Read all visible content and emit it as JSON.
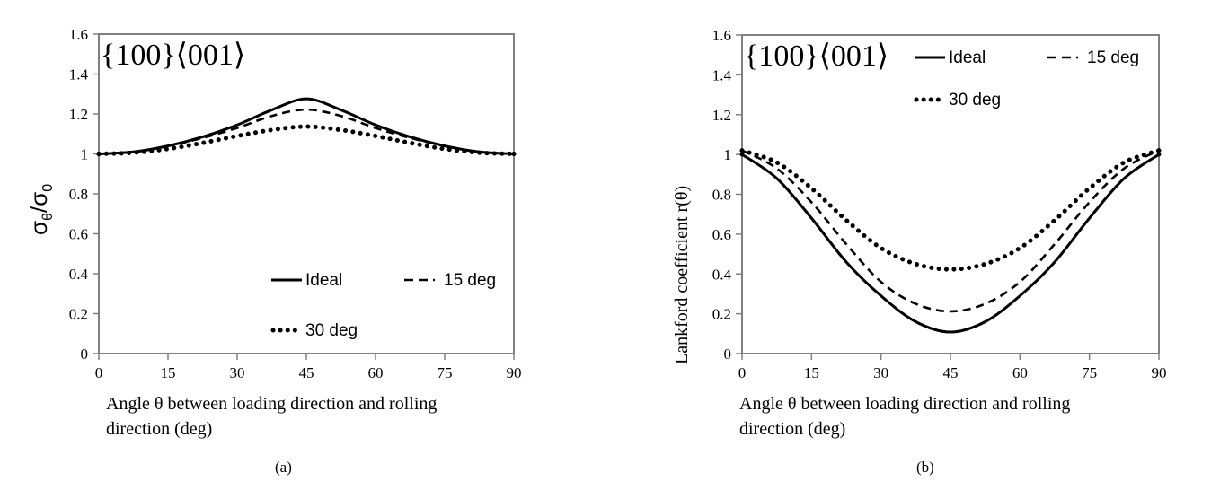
{
  "chart_data": [
    {
      "type": "line",
      "panel_label": "(a)",
      "annotation": "{100}⟨001⟩",
      "xlabel_line1": "Angle θ between loading direction and rolling",
      "xlabel_line2": "direction (deg)",
      "ylabel_main": "σ",
      "ylabel_sub_num": "θ",
      "ylabel_slash": "/",
      "ylabel_den": "σ",
      "ylabel_sub_den": "0",
      "xlim": [
        0,
        90
      ],
      "ylim": [
        0,
        1.6
      ],
      "xticks": [
        "0",
        "15",
        "30",
        "45",
        "60",
        "75",
        "90"
      ],
      "yticks": [
        "0",
        "0.2",
        "0.4",
        "0.6",
        "0.8",
        "1",
        "1.2",
        "1.4",
        "1.6"
      ],
      "grid": false,
      "legend_position": "bottom-right",
      "x": [
        0,
        7.5,
        15,
        22.5,
        30,
        37.5,
        45,
        52.5,
        60,
        67.5,
        75,
        82.5,
        90
      ],
      "series": [
        {
          "name": "Ideal",
          "style": "solid",
          "values": [
            1.0,
            1.01,
            1.04,
            1.085,
            1.145,
            1.22,
            1.276,
            1.22,
            1.145,
            1.085,
            1.04,
            1.01,
            1.0
          ]
        },
        {
          "name": "15 deg",
          "style": "dashed",
          "values": [
            1.0,
            1.01,
            1.04,
            1.08,
            1.13,
            1.19,
            1.222,
            1.19,
            1.13,
            1.08,
            1.04,
            1.01,
            1.0
          ]
        },
        {
          "name": "30 deg",
          "style": "dotted",
          "values": [
            1.0,
            1.006,
            1.025,
            1.055,
            1.09,
            1.12,
            1.137,
            1.12,
            1.09,
            1.055,
            1.025,
            1.006,
            1.0
          ]
        }
      ]
    },
    {
      "type": "line",
      "panel_label": "(b)",
      "annotation": "{100}⟨001⟩",
      "xlabel_line1": "Angle θ between loading direction and rolling",
      "xlabel_line2": "direction (deg)",
      "ylabel": "Lankford coefficient r(θ)",
      "xlim": [
        0,
        90
      ],
      "ylim": [
        0,
        1.6
      ],
      "xticks": [
        "0",
        "15",
        "30",
        "45",
        "60",
        "75",
        "90"
      ],
      "yticks": [
        "0",
        "0.2",
        "0.4",
        "0.6",
        "0.8",
        "1",
        "1.2",
        "1.4",
        "1.6"
      ],
      "grid": false,
      "legend_position": "top-right",
      "x": [
        0,
        7.5,
        15,
        22.5,
        30,
        37.5,
        45,
        52.5,
        60,
        67.5,
        75,
        82.5,
        90
      ],
      "series": [
        {
          "name": "Ideal",
          "style": "solid",
          "values": [
            1.0,
            0.88,
            0.68,
            0.46,
            0.29,
            0.16,
            0.108,
            0.16,
            0.29,
            0.46,
            0.68,
            0.88,
            1.0
          ]
        },
        {
          "name": "15 deg",
          "style": "dashed",
          "values": [
            1.02,
            0.93,
            0.76,
            0.55,
            0.36,
            0.25,
            0.212,
            0.25,
            0.36,
            0.55,
            0.76,
            0.93,
            1.02
          ]
        },
        {
          "name": "30 deg",
          "style": "dotted",
          "values": [
            1.02,
            0.96,
            0.83,
            0.67,
            0.53,
            0.45,
            0.423,
            0.45,
            0.53,
            0.67,
            0.83,
            0.96,
            1.02
          ]
        }
      ]
    }
  ]
}
